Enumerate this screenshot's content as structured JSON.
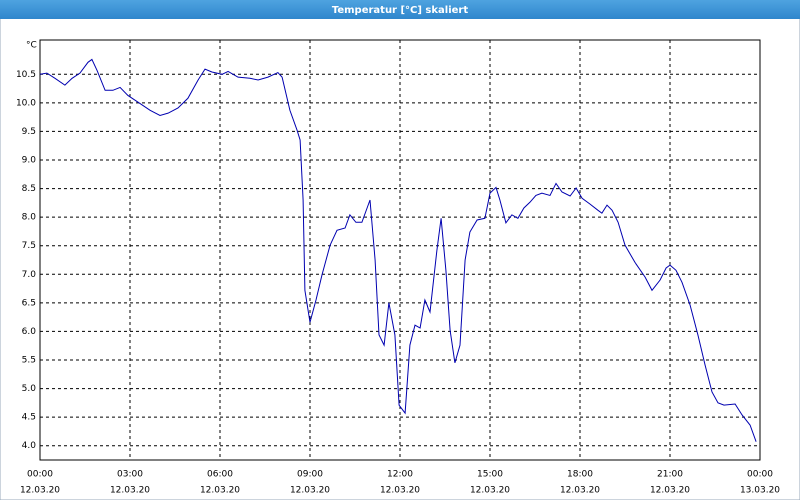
{
  "chart_data": {
    "type": "line",
    "title": "Temperatur [°C] skaliert",
    "y_unit": "°C",
    "x": [
      0,
      0.23,
      0.5,
      0.83,
      1.07,
      1.33,
      1.6,
      1.73,
      1.9,
      2.17,
      2.43,
      2.67,
      2.93,
      3.33,
      3.67,
      4.0,
      4.27,
      4.6,
      4.93,
      5.27,
      5.5,
      5.73,
      6.07,
      6.27,
      6.6,
      7.0,
      7.27,
      7.6,
      7.93,
      8.07,
      8.33,
      8.57,
      8.67,
      8.77,
      8.83,
      9.0,
      9.2,
      9.4,
      9.67,
      9.9,
      10.17,
      10.33,
      10.53,
      10.73,
      11.0,
      11.17,
      11.3,
      11.47,
      11.63,
      11.83,
      11.97,
      12.17,
      12.33,
      12.5,
      12.67,
      12.83,
      13.0,
      13.23,
      13.37,
      13.53,
      13.67,
      13.83,
      14.0,
      14.17,
      14.33,
      14.57,
      14.83,
      15.0,
      15.2,
      15.33,
      15.53,
      15.73,
      15.93,
      16.13,
      16.33,
      16.53,
      16.73,
      17.0,
      17.2,
      17.4,
      17.67,
      17.87,
      18.07,
      18.33,
      18.6,
      18.73,
      18.9,
      19.07,
      19.27,
      19.5,
      19.83,
      20.17,
      20.4,
      20.67,
      20.87,
      21.0,
      21.2,
      21.4,
      21.67,
      21.93,
      22.17,
      22.4,
      22.6,
      22.8,
      23.17,
      23.4,
      23.67,
      23.87
    ],
    "values": [
      10.5,
      10.52,
      10.43,
      10.31,
      10.43,
      10.52,
      10.71,
      10.76,
      10.57,
      10.22,
      10.22,
      10.27,
      10.13,
      9.99,
      9.87,
      9.78,
      9.82,
      9.91,
      10.08,
      10.4,
      10.59,
      10.54,
      10.5,
      10.55,
      10.45,
      10.43,
      10.4,
      10.45,
      10.53,
      10.45,
      9.87,
      9.52,
      9.35,
      8.3,
      6.72,
      6.16,
      6.55,
      6.99,
      7.51,
      7.77,
      7.81,
      8.04,
      7.91,
      7.91,
      8.3,
      7.25,
      5.94,
      5.76,
      6.5,
      5.94,
      4.71,
      4.57,
      5.76,
      6.11,
      6.06,
      6.55,
      6.34,
      7.42,
      7.98,
      7.07,
      6.02,
      5.45,
      5.76,
      7.25,
      7.74,
      7.95,
      7.98,
      8.42,
      8.52,
      8.3,
      7.9,
      8.04,
      7.98,
      8.16,
      8.26,
      8.38,
      8.42,
      8.38,
      8.59,
      8.44,
      8.37,
      8.51,
      8.33,
      8.23,
      8.12,
      8.07,
      8.21,
      8.12,
      7.91,
      7.51,
      7.21,
      6.95,
      6.72,
      6.9,
      7.11,
      7.16,
      7.07,
      6.86,
      6.46,
      5.94,
      5.41,
      4.94,
      4.75,
      4.71,
      4.73,
      4.54,
      4.36,
      4.07
    ],
    "color": "#0000b0",
    "xlim": [
      0,
      24
    ],
    "xticks": [
      {
        "value": 0,
        "label": "00:00"
      },
      {
        "value": 3,
        "label": "03:00"
      },
      {
        "value": 6,
        "label": "06:00"
      },
      {
        "value": 9,
        "label": "09:00"
      },
      {
        "value": 12,
        "label": "12:00"
      },
      {
        "value": 15,
        "label": "15:00"
      },
      {
        "value": 18,
        "label": "18:00"
      },
      {
        "value": 21,
        "label": "21:00"
      },
      {
        "value": 24,
        "label": "00:00"
      }
    ],
    "xtick_dates": [
      "12.03.20",
      "12.03.20",
      "12.03.20",
      "12.03.20",
      "12.03.20",
      "12.03.20",
      "12.03.20",
      "12.03.20",
      "13.03.20"
    ],
    "ylim": [
      3.75,
      11.1
    ],
    "yticks": [
      {
        "value": 4,
        "label": "4.0"
      },
      4.5,
      {
        "value": 5,
        "label": "5.0"
      },
      5.5,
      {
        "value": 6,
        "label": "6.0"
      },
      6.5,
      {
        "value": 7,
        "label": "7.0"
      },
      7.5,
      {
        "value": 8,
        "label": "8.0"
      },
      8.5,
      {
        "value": 9,
        "label": "9.0"
      },
      9.5,
      {
        "value": 10,
        "label": "10.0"
      },
      10.5
    ],
    "grid": true
  }
}
